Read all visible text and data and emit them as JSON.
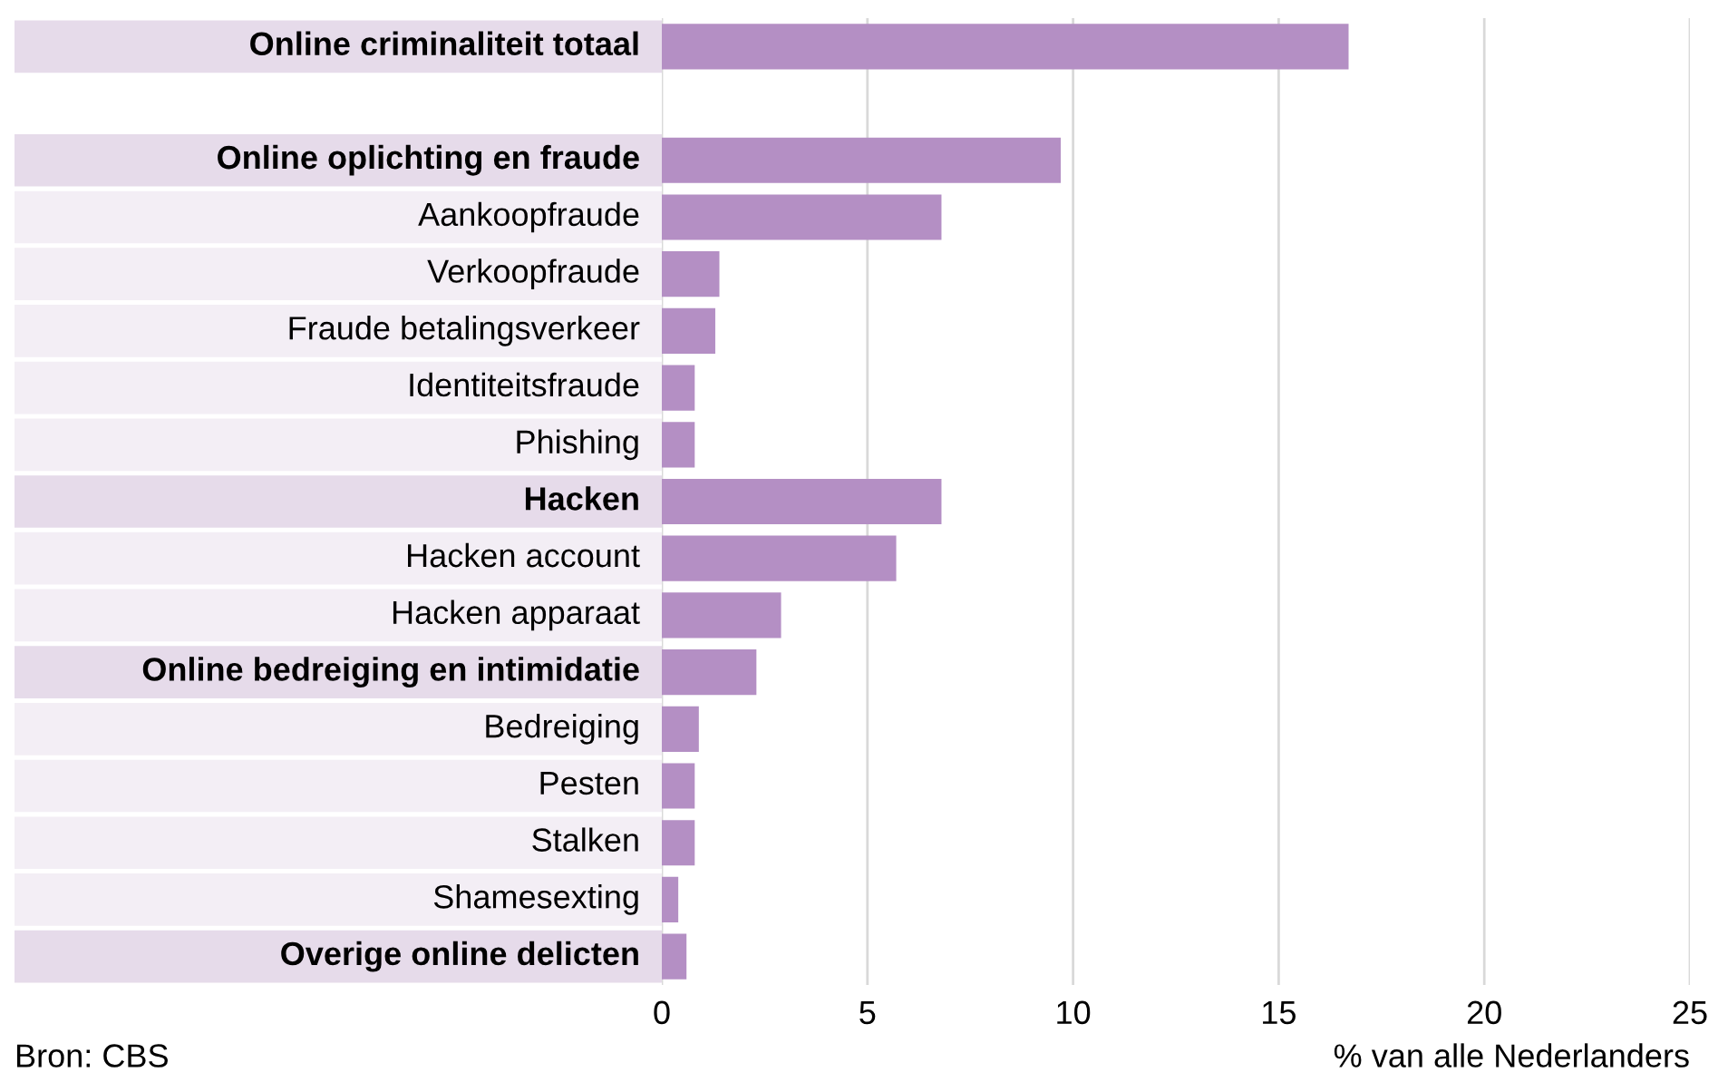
{
  "chart_data": {
    "type": "bar",
    "orientation": "horizontal",
    "categories": [
      "Online criminaliteit totaal",
      null,
      "Online oplichting en fraude",
      "Aankoopfraude",
      "Verkoopfraude",
      "Fraude betalingsverkeer",
      "Identiteitsfraude",
      "Phishing",
      "Hacken",
      "Hacken account",
      "Hacken apparaat",
      "Online bedreiging en intimidatie",
      "Bedreiging",
      "Pesten",
      "Stalken",
      "Shamesexting",
      "Overige online delicten"
    ],
    "values": [
      16.7,
      null,
      9.7,
      6.8,
      1.4,
      1.3,
      0.8,
      0.8,
      6.8,
      5.7,
      2.9,
      2.3,
      0.9,
      0.8,
      0.8,
      0.4,
      0.6
    ],
    "color": "#b48fc4",
    "xlim": [
      0,
      25
    ],
    "xticks": [
      0,
      5,
      10,
      15,
      20,
      25
    ],
    "xlabel": "% van alle Nederlanders",
    "annotations": [
      "Bron: CBS"
    ],
    "grid": "x"
  }
}
